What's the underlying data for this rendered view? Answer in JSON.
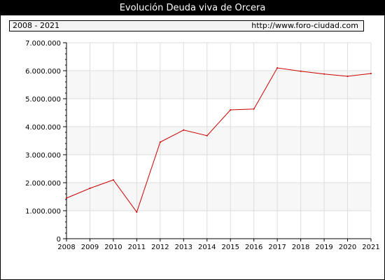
{
  "chart_data": {
    "type": "line",
    "title": "Evolución Deuda viva de Orcera",
    "period": "2008 - 2021",
    "source_url": "http://www.foro-ciudad.com",
    "categories": [
      "2008",
      "2009",
      "2010",
      "2011",
      "2012",
      "2013",
      "2014",
      "2015",
      "2016",
      "2017",
      "2018",
      "2019",
      "2020",
      "2021"
    ],
    "series": [
      {
        "values": [
          1450000,
          1800000,
          2100000,
          950000,
          3450000,
          3880000,
          3680000,
          4600000,
          4630000,
          6100000,
          5980000,
          5880000,
          5800000,
          5900000
        ]
      }
    ],
    "ylim": [
      0,
      7000000
    ],
    "yticks": [
      0,
      1000000,
      2000000,
      3000000,
      4000000,
      5000000,
      6000000,
      7000000
    ],
    "ytick_labels": [
      "0",
      "1.000.000",
      "2.000.000",
      "3.000.000",
      "4.000.000",
      "5.000.000",
      "6.000.000",
      "7.000.000"
    ],
    "grid": true,
    "colors": {
      "line": "#cc0000",
      "plot_bg": "#f7f7f7",
      "band_bg": "#ffffff",
      "grid": "#dddddd"
    }
  }
}
